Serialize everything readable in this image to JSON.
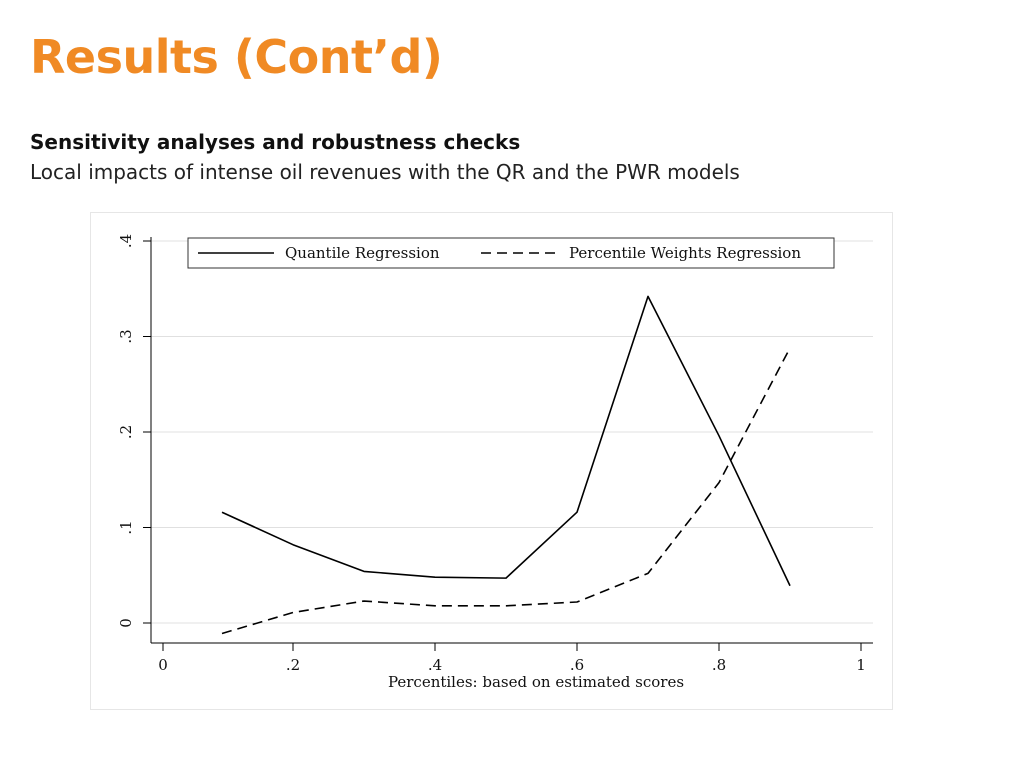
{
  "slide": {
    "title": "Results (Cont’d)",
    "subheading": "Sensitivity analyses and robustness checks",
    "subtext": "Local impacts of intense oil revenues with the QR and the PWR models"
  },
  "chart_data": {
    "type": "line",
    "xlabel": "Percentiles: based on estimated scores",
    "ylabel": "",
    "xlim": [
      0,
      1
    ],
    "ylim": [
      0,
      0.4
    ],
    "x_ticks": [
      {
        "value": 0,
        "label": "0"
      },
      {
        "value": 0.2,
        "label": ".2"
      },
      {
        "value": 0.4,
        "label": ".4"
      },
      {
        "value": 0.6,
        "label": ".6"
      },
      {
        "value": 0.8,
        "label": ".8"
      },
      {
        "value": 1,
        "label": "1"
      }
    ],
    "y_ticks": [
      {
        "value": 0,
        "label": "0"
      },
      {
        "value": 0.1,
        "label": ".1"
      },
      {
        "value": 0.2,
        "label": ".2"
      },
      {
        "value": 0.3,
        "label": ".3"
      },
      {
        "value": 0.4,
        "label": ".4"
      }
    ],
    "grid": true,
    "legend_position": "top",
    "series": [
      {
        "name": "Quantile Regression",
        "style": "solid",
        "color": "#000000",
        "x": [
          0.1,
          0.2,
          0.3,
          0.4,
          0.5,
          0.6,
          0.7,
          0.8,
          0.9
        ],
        "y": [
          0.116,
          0.082,
          0.054,
          0.048,
          0.047,
          0.116,
          0.342,
          0.196,
          0.039
        ]
      },
      {
        "name": "Percentile Weights Regression",
        "style": "dashed",
        "color": "#000000",
        "x": [
          0.1,
          0.2,
          0.3,
          0.4,
          0.5,
          0.6,
          0.7,
          0.8,
          0.9
        ],
        "y": [
          -0.011,
          0.011,
          0.023,
          0.018,
          0.018,
          0.022,
          0.052,
          0.147,
          0.288
        ]
      }
    ]
  },
  "colors": {
    "title": "#F08A24",
    "grid": "#e0e0e0",
    "line": "#000000"
  }
}
